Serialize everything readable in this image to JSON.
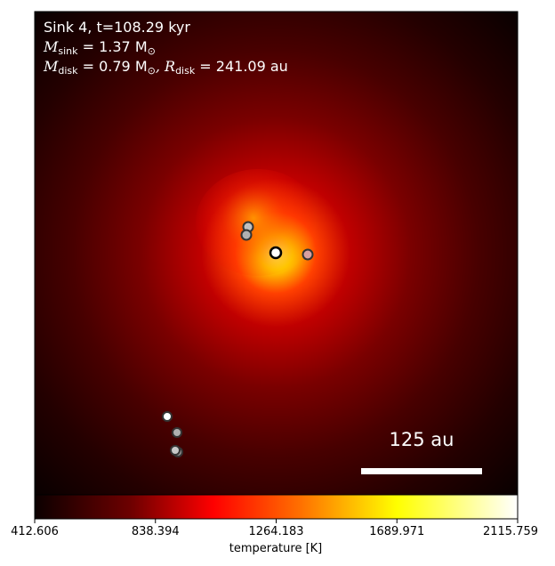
{
  "annotation": {
    "line1": "Sink 4, t=108.29 kyr",
    "msink_label": "M",
    "msink_sub": "sink",
    "msink_value": " = 1.37 M",
    "msink_sun": "⊙",
    "mdisk_label": "M",
    "mdisk_sub": "disk",
    "mdisk_value": " = 0.79 M",
    "mdisk_sun": "⊙",
    "rdisk_label": ", R",
    "rdisk_sub": "disk",
    "rdisk_value": " = 241.09 au"
  },
  "scalebar": {
    "label": "125 au"
  },
  "colorbar": {
    "label": "temperature [K]",
    "ticks": [
      "412.606",
      "838.394",
      "1264.183",
      "1689.971",
      "2115.759"
    ],
    "min": 412.606,
    "max": 2115.759,
    "colormap": "hot"
  },
  "colors": {
    "background_dark": "#200000",
    "hot_core": "#ffff40",
    "sink_marker": "#ffffff"
  }
}
